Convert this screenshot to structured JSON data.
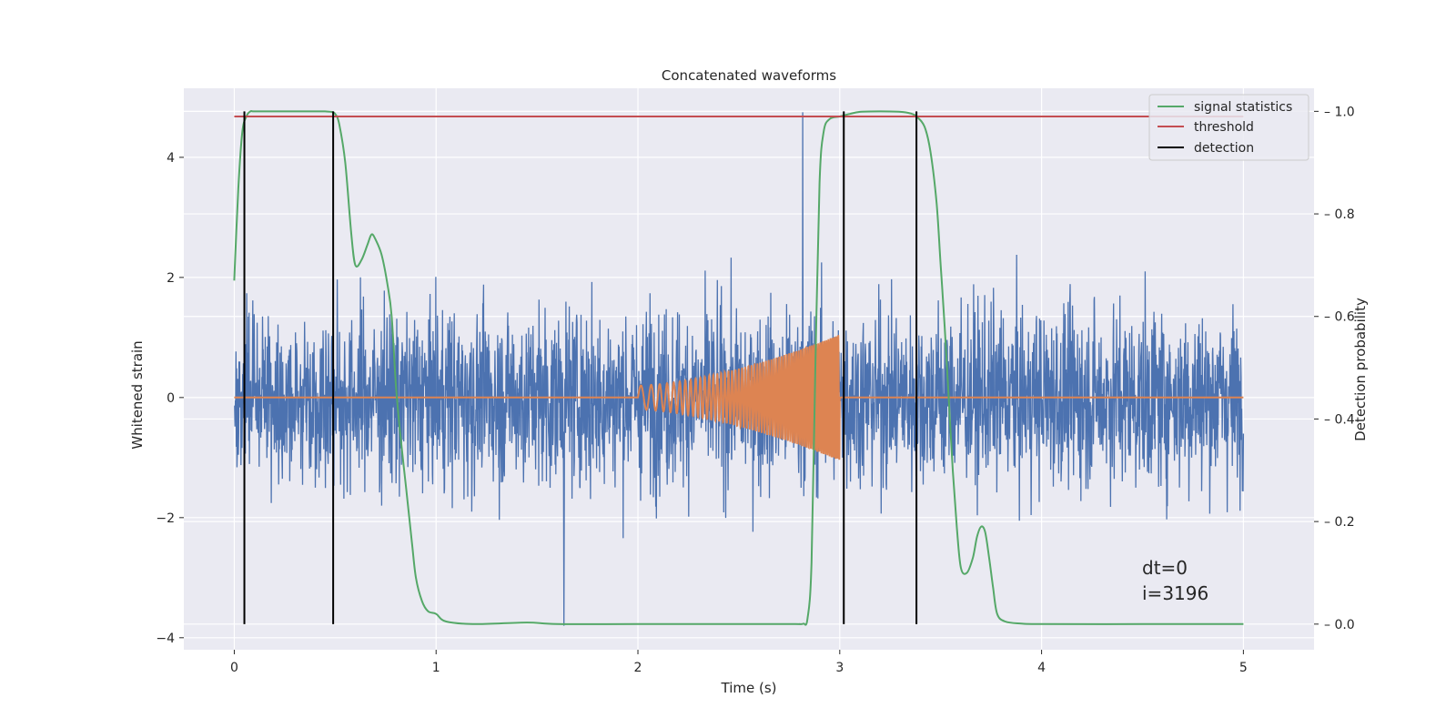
{
  "chart_data": {
    "type": "line",
    "title": "Concatenated waveforms",
    "xlabel": "Time (s)",
    "ylabel": "Whitened strain",
    "y2label": "Detection probability",
    "xlim": [
      -0.25,
      5.35
    ],
    "ylim": [
      -4.2,
      5.15
    ],
    "y2lim": [
      -0.05,
      1.045
    ],
    "xticks": [
      0,
      1,
      2,
      3,
      4,
      5
    ],
    "yticks": [
      -4,
      -2,
      0,
      2,
      4
    ],
    "y2ticks": [
      0.0,
      0.2,
      0.4,
      0.6,
      0.8,
      1.0
    ],
    "xtick_labels": [
      "0",
      "1",
      "2",
      "3",
      "4",
      "5"
    ],
    "ytick_labels": [
      "−4",
      "−2",
      "0",
      "2",
      "4"
    ],
    "y2tick_labels": [
      "0.0",
      "0.2",
      "0.4",
      "0.6",
      "0.8",
      "1.0"
    ],
    "grid": true,
    "legend_position": "top-right",
    "legend": [
      "signal statistics",
      "threshold",
      "detection"
    ],
    "colors": {
      "strain": "#4c72b0",
      "injection": "#dd8452",
      "signal_statistics": "#55a868",
      "threshold": "#c44e52",
      "detection": "#000000",
      "background": "#eaeaf2",
      "grid": "#ffffff"
    },
    "strain_noise": {
      "t_start": 0,
      "t_end": 5,
      "typical_range": [
        -2.5,
        2.5
      ],
      "max": 4.75,
      "min": -3.8
    },
    "injection_chirp": {
      "t_start": 2.0,
      "t_end": 3.0,
      "amplitude_start": 0.2,
      "amplitude_end": 1.05
    },
    "signal_statistics": {
      "axis": "right",
      "t": [
        0.0,
        0.02,
        0.04,
        0.06,
        0.08,
        0.1,
        0.2,
        0.3,
        0.4,
        0.45,
        0.48,
        0.5,
        0.52,
        0.55,
        0.58,
        0.6,
        0.63,
        0.66,
        0.68,
        0.7,
        0.73,
        0.76,
        0.78,
        0.8,
        0.82,
        0.85,
        0.88,
        0.9,
        0.93,
        0.96,
        1.0,
        1.05,
        1.2,
        1.45,
        1.6,
        2.0,
        2.5,
        2.78,
        2.8,
        2.82,
        2.84,
        2.86,
        2.88,
        2.9,
        2.92,
        2.95,
        3.0,
        3.05,
        3.1,
        3.2,
        3.3,
        3.35,
        3.38,
        3.42,
        3.45,
        3.48,
        3.5,
        3.52,
        3.54,
        3.56,
        3.58,
        3.6,
        3.63,
        3.66,
        3.68,
        3.7,
        3.72,
        3.74,
        3.76,
        3.78,
        3.82,
        3.9,
        4.0,
        4.5,
        5.0
      ],
      "p": [
        0.67,
        0.85,
        0.96,
        0.99,
        1.0,
        1.0,
        1.0,
        1.0,
        1.0,
        1.0,
        0.999,
        0.995,
        0.975,
        0.9,
        0.76,
        0.7,
        0.71,
        0.74,
        0.76,
        0.75,
        0.72,
        0.66,
        0.6,
        0.47,
        0.38,
        0.27,
        0.16,
        0.09,
        0.045,
        0.025,
        0.02,
        0.005,
        0.0,
        0.003,
        0.0,
        0.0,
        0.0,
        0.0,
        0.0,
        0.001,
        0.01,
        0.12,
        0.52,
        0.86,
        0.96,
        0.985,
        0.99,
        0.995,
        0.999,
        1.0,
        0.999,
        0.996,
        0.99,
        0.97,
        0.92,
        0.82,
        0.7,
        0.58,
        0.44,
        0.3,
        0.19,
        0.11,
        0.1,
        0.13,
        0.17,
        0.19,
        0.18,
        0.13,
        0.07,
        0.02,
        0.005,
        0.001,
        0.0,
        0.0,
        0.0
      ]
    },
    "threshold": {
      "axis": "right",
      "value": 0.99,
      "x_range": [
        0,
        5
      ]
    },
    "detections": [
      0.05,
      0.49,
      3.02,
      3.38
    ],
    "annotations": [
      "dt=0",
      "i=3196"
    ]
  }
}
